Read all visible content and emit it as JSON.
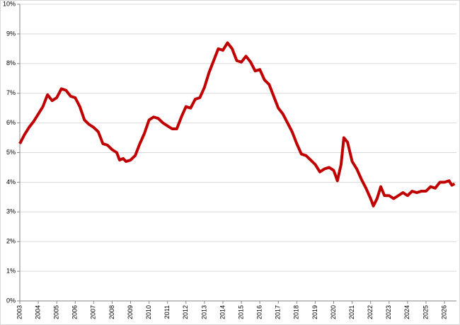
{
  "chart_data": {
    "type": "line",
    "x": [
      2003,
      2003.25,
      2003.5,
      2003.75,
      2004,
      2004.25,
      2004.5,
      2004.75,
      2005,
      2005.25,
      2005.5,
      2005.75,
      2006,
      2006.25,
      2006.5,
      2006.75,
      2007,
      2007.25,
      2007.5,
      2007.75,
      2008,
      2008.25,
      2008.4,
      2008.6,
      2008.75,
      2009,
      2009.25,
      2009.5,
      2009.75,
      2010,
      2010.25,
      2010.5,
      2010.75,
      2011,
      2011.25,
      2011.5,
      2011.75,
      2012,
      2012.25,
      2012.5,
      2012.75,
      2013,
      2013.25,
      2013.5,
      2013.75,
      2014,
      2014.25,
      2014.5,
      2014.75,
      2015,
      2015.25,
      2015.5,
      2015.75,
      2016,
      2016.25,
      2016.5,
      2016.75,
      2017,
      2017.25,
      2017.5,
      2017.75,
      2018,
      2018.25,
      2018.5,
      2018.75,
      2019,
      2019.25,
      2019.5,
      2019.75,
      2020,
      2020.2,
      2020.4,
      2020.55,
      2020.75,
      2021,
      2021.25,
      2021.5,
      2021.75,
      2022,
      2022.15,
      2022.35,
      2022.55,
      2022.75,
      2023,
      2023.25,
      2023.5,
      2023.75,
      2024,
      2024.25,
      2024.5,
      2024.75,
      2025,
      2025.25,
      2025.5,
      2025.75,
      2026,
      2026.25,
      2026.4,
      2026.55
    ],
    "series": [
      {
        "color": "#c00000",
        "values": [
          5.3,
          5.6,
          5.85,
          6.05,
          6.3,
          6.55,
          6.95,
          6.75,
          6.85,
          7.15,
          7.1,
          6.9,
          6.85,
          6.55,
          6.1,
          5.95,
          5.85,
          5.7,
          5.3,
          5.25,
          5.1,
          5.0,
          4.75,
          4.8,
          4.7,
          4.75,
          4.9,
          5.3,
          5.65,
          6.1,
          6.2,
          6.15,
          6.0,
          5.9,
          5.8,
          5.8,
          6.2,
          6.55,
          6.5,
          6.8,
          6.85,
          7.2,
          7.7,
          8.1,
          8.5,
          8.45,
          8.7,
          8.5,
          8.1,
          8.05,
          8.25,
          8.05,
          7.75,
          7.8,
          7.45,
          7.3,
          6.9,
          6.5,
          6.3,
          6.0,
          5.7,
          5.3,
          4.95,
          4.9,
          4.75,
          4.6,
          4.35,
          4.45,
          4.5,
          4.4,
          4.05,
          4.6,
          5.5,
          5.35,
          4.7,
          4.45,
          4.1,
          3.8,
          3.45,
          3.2,
          3.45,
          3.85,
          3.55,
          3.55,
          3.45,
          3.55,
          3.65,
          3.55,
          3.7,
          3.65,
          3.7,
          3.7,
          3.85,
          3.8,
          4.0,
          4.0,
          4.05,
          3.9,
          3.95
        ]
      }
    ],
    "xlim": [
      2003,
      2026.65
    ],
    "xticks": [
      2003,
      2004,
      2005,
      2006,
      2007,
      2008,
      2009,
      2010,
      2011,
      2012,
      2013,
      2014,
      2015,
      2016,
      2017,
      2018,
      2019,
      2020,
      2021,
      2022,
      2023,
      2024,
      2025,
      2026
    ],
    "ylim": [
      0,
      10
    ],
    "yticks": [
      {
        "value": 0,
        "label": "0%"
      },
      {
        "value": 1,
        "label": "1%"
      },
      {
        "value": 2,
        "label": "2%"
      },
      {
        "value": 3,
        "label": "3%"
      },
      {
        "value": 4,
        "label": "4%"
      },
      {
        "value": 5,
        "label": "5%"
      },
      {
        "value": 6,
        "label": "6%"
      },
      {
        "value": 7,
        "label": "7%"
      },
      {
        "value": 8,
        "label": "8%"
      },
      {
        "value": 9,
        "label": "9%"
      },
      {
        "value": 10,
        "label": "10%"
      }
    ],
    "grid": true
  }
}
